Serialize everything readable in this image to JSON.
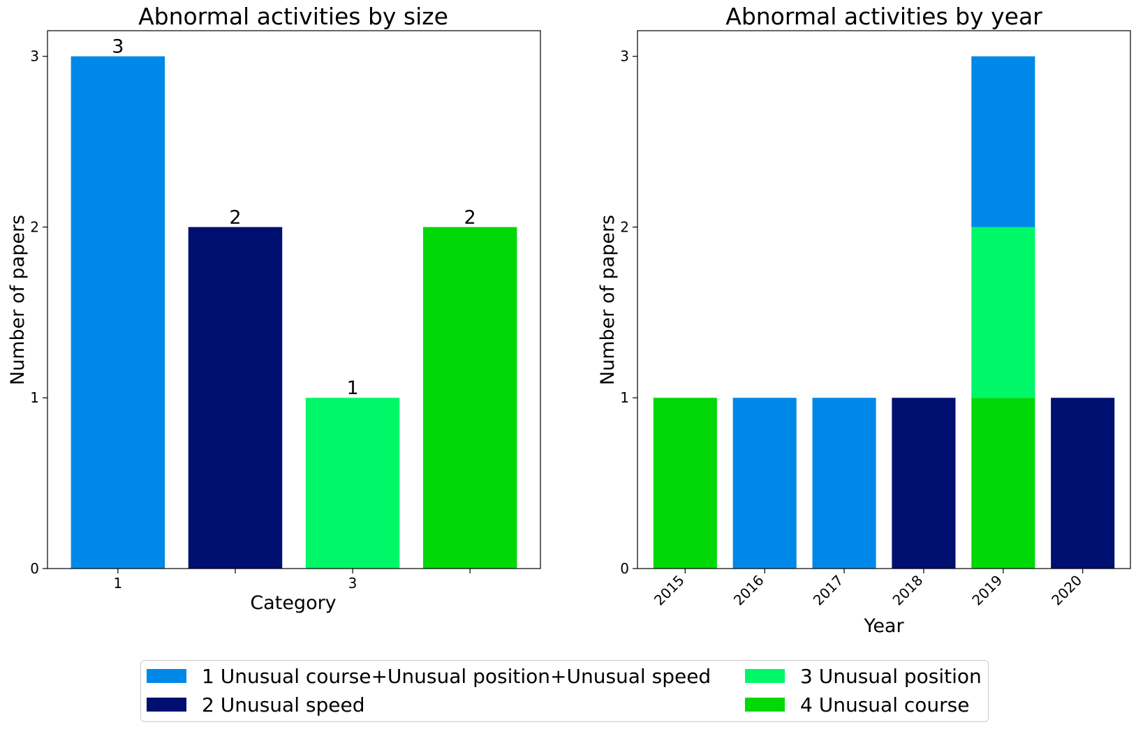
{
  "chart_data": [
    {
      "type": "bar",
      "title": "Abnormal activities by size",
      "xlabel": "Category",
      "ylabel": "Number of papers",
      "categories": [
        "1",
        "2",
        "3",
        "4"
      ],
      "x_tick_labels": [
        "1",
        "",
        "3",
        ""
      ],
      "values": [
        3,
        2,
        1,
        2
      ],
      "data_labels": [
        "3",
        "2",
        "1",
        "2"
      ],
      "bar_colors": [
        "#0088e8",
        "#001070",
        "#00f868",
        "#00d808"
      ],
      "ylim": [
        0,
        3.15
      ],
      "yticks": [
        "0",
        "1",
        "2",
        "3"
      ],
      "grid": false
    },
    {
      "type": "bar",
      "stacked": true,
      "title": "Abnormal activities by year",
      "xlabel": "Year",
      "ylabel": "Number of papers",
      "categories": [
        "2015",
        "2016",
        "2017",
        "2018",
        "2019",
        "2020"
      ],
      "series": [
        {
          "name": "4 Unusual course",
          "color": "#00d808",
          "values": [
            1,
            0,
            0,
            0,
            1,
            0
          ]
        },
        {
          "name": "3 Unusual position",
          "color": "#00f868",
          "values": [
            0,
            0,
            0,
            0,
            1,
            0
          ]
        },
        {
          "name": "1 Unusual course+Unusual position+Unusual speed",
          "color": "#0088e8",
          "values": [
            0,
            1,
            1,
            0,
            1,
            0
          ]
        },
        {
          "name": "2 Unusual speed",
          "color": "#001070",
          "values": [
            0,
            0,
            0,
            1,
            0,
            1
          ]
        }
      ],
      "ylim": [
        0,
        3.15
      ],
      "yticks": [
        "0",
        "1",
        "2",
        "3"
      ],
      "grid": false
    }
  ],
  "legend": {
    "placement": "bottom-center",
    "items": [
      {
        "label": "1 Unusual course+Unusual position+Unusual speed",
        "color": "#0088e8"
      },
      {
        "label": "2 Unusual speed",
        "color": "#001070"
      },
      {
        "label": "3 Unusual position",
        "color": "#00f868"
      },
      {
        "label": "4 Unusual course",
        "color": "#00d808"
      }
    ]
  }
}
